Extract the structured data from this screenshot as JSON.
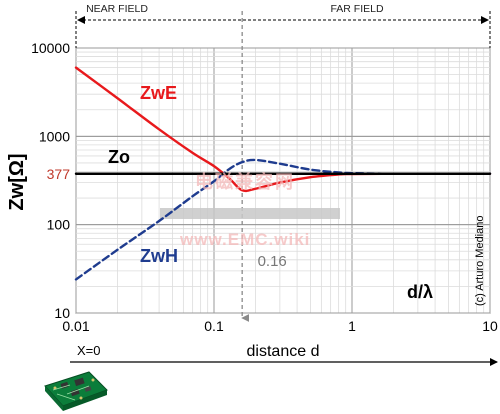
{
  "chart_data": {
    "type": "line",
    "xlabel": "d/λ",
    "ylabel": "Zw[Ω]",
    "x_scale": "log",
    "y_scale": "log",
    "xlim": [
      0.01,
      10
    ],
    "ylim": [
      10,
      10000
    ],
    "x_ticks": [
      "0.01",
      "0.1",
      "1",
      "10"
    ],
    "y_ticks": [
      "10",
      "100",
      "1000",
      "10000"
    ],
    "grid": true,
    "regions": [
      {
        "label": "NEAR FIELD",
        "from": 0.01,
        "to": 0.16
      },
      {
        "label": "FAR FIELD",
        "from": 0.16,
        "to": 10
      }
    ],
    "series": [
      {
        "name": "ZwE",
        "color": "#e8191c",
        "style": "solid",
        "points": [
          [
            0.01,
            6000
          ],
          [
            0.02,
            2700
          ],
          [
            0.04,
            1200
          ],
          [
            0.07,
            650
          ],
          [
            0.1,
            460
          ],
          [
            0.13,
            330
          ],
          [
            0.16,
            245
          ],
          [
            0.2,
            255
          ],
          [
            0.3,
            300
          ],
          [
            0.5,
            345
          ],
          [
            0.8,
            370
          ],
          [
            1,
            374
          ],
          [
            2,
            377
          ],
          [
            5,
            377
          ],
          [
            10,
            377
          ]
        ]
      },
      {
        "name": "ZwH",
        "color": "#1f3c8f",
        "style": "dashed",
        "points": [
          [
            0.01,
            24
          ],
          [
            0.02,
            52
          ],
          [
            0.04,
            110
          ],
          [
            0.07,
            210
          ],
          [
            0.1,
            310
          ],
          [
            0.13,
            430
          ],
          [
            0.16,
            510
          ],
          [
            0.2,
            540
          ],
          [
            0.3,
            490
          ],
          [
            0.5,
            420
          ],
          [
            0.8,
            390
          ],
          [
            1,
            383
          ],
          [
            2,
            377
          ],
          [
            5,
            377
          ],
          [
            10,
            377
          ]
        ]
      },
      {
        "name": "Zo",
        "color": "#000000",
        "style": "solid",
        "points": [
          [
            0.01,
            377
          ],
          [
            10,
            377
          ]
        ]
      }
    ],
    "annotations": {
      "zo_value": "377",
      "crossover": "0.16",
      "x_zero": "X=0",
      "distance": "distance d",
      "copyright": "(c) Arturo Mediano"
    }
  },
  "watermark": {
    "cn": "电磁兼容网",
    "site": "www.EMC.wiki"
  }
}
